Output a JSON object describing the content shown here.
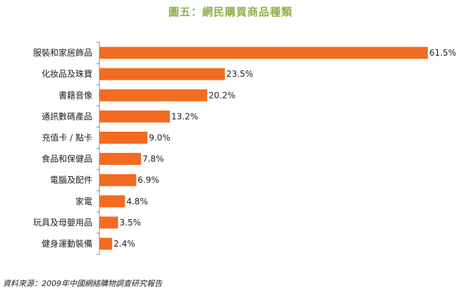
{
  "chart_data": {
    "type": "bar",
    "orientation": "horizontal",
    "title": "圖五：網民購買商品種類",
    "categories": [
      "服裝和家居飾品",
      "化妝品及珠寶",
      "書籍音像",
      "通訊數碼產品",
      "充值卡 / 點卡",
      "食品和保健品",
      "電腦及配件",
      "家電",
      "玩具及母嬰用品",
      "健身運動裝備"
    ],
    "values": [
      61.5,
      23.5,
      20.2,
      13.2,
      9.0,
      7.8,
      6.9,
      4.8,
      3.5,
      2.4
    ],
    "value_labels": [
      "61.5%",
      "23.5%",
      "20.2%",
      "13.2%",
      "9.0%",
      "7.8%",
      "6.9%",
      "4.8%",
      "3.5%",
      "2.4%"
    ],
    "xlim": [
      0,
      61.5
    ],
    "grid": false,
    "bar_color": "#f26b21",
    "title_color": "#8db04a"
  },
  "source": "資料來源：2009年中國網絡購物調查研究報告"
}
